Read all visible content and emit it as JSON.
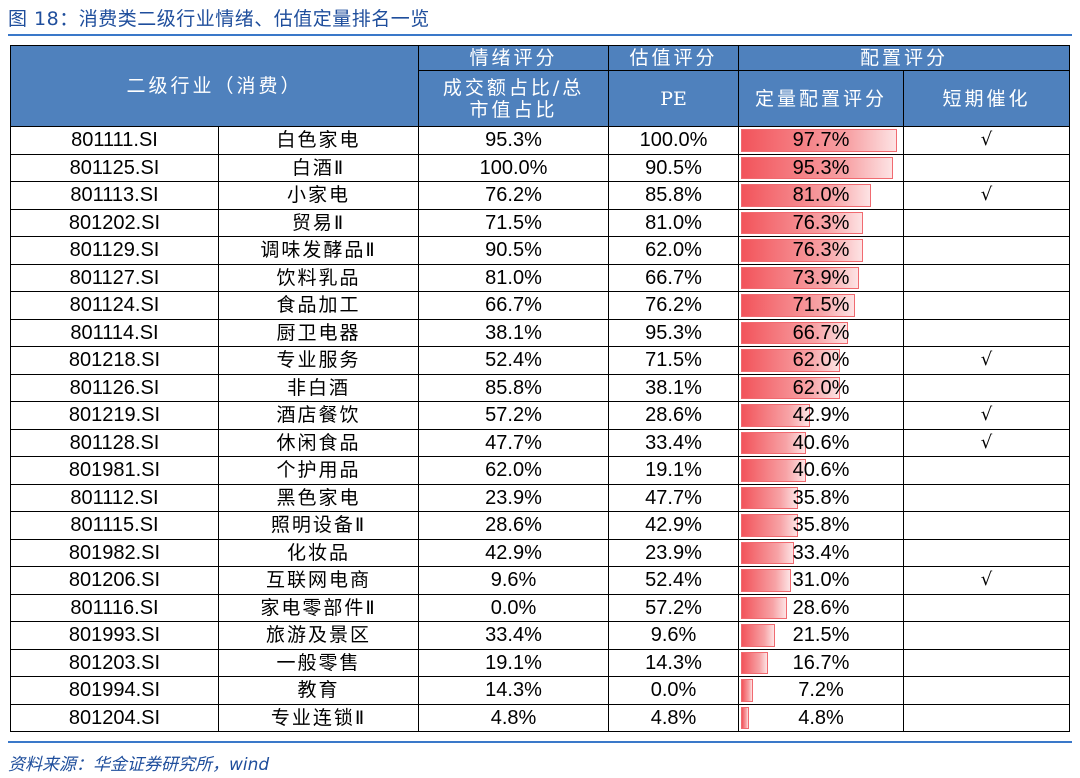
{
  "title": "图 18：消费类二级行业情绪、估值定量排名一览",
  "source": "资料来源：华金证券研究所，wind",
  "header": {
    "industry": "二级行业（消费）",
    "sentiment": "情绪评分",
    "sentiment_sub": "成交额占比/总市值占比",
    "valuation": "估值评分",
    "valuation_sub": "PE",
    "allocation": "配置评分",
    "allocation_quant": "定量配置评分",
    "allocation_catalyst": "短期催化"
  },
  "accent_color": "#4f81bd",
  "bar_color": "#f2545b",
  "check_mark": "√",
  "rows": [
    {
      "code": "801111.SI",
      "name": "白色家电",
      "sentiment": "95.3%",
      "pe": "100.0%",
      "score": "97.7%",
      "score_value": 97.7,
      "catalyst": "√"
    },
    {
      "code": "801125.SI",
      "name": "白酒Ⅱ",
      "sentiment": "100.0%",
      "pe": "90.5%",
      "score": "95.3%",
      "score_value": 95.3,
      "catalyst": ""
    },
    {
      "code": "801113.SI",
      "name": "小家电",
      "sentiment": "76.2%",
      "pe": "85.8%",
      "score": "81.0%",
      "score_value": 81.0,
      "catalyst": "√"
    },
    {
      "code": "801202.SI",
      "name": "贸易Ⅱ",
      "sentiment": "71.5%",
      "pe": "81.0%",
      "score": "76.3%",
      "score_value": 76.3,
      "catalyst": ""
    },
    {
      "code": "801129.SI",
      "name": "调味发酵品Ⅱ",
      "sentiment": "90.5%",
      "pe": "62.0%",
      "score": "76.3%",
      "score_value": 76.3,
      "catalyst": ""
    },
    {
      "code": "801127.SI",
      "name": "饮料乳品",
      "sentiment": "81.0%",
      "pe": "66.7%",
      "score": "73.9%",
      "score_value": 73.9,
      "catalyst": ""
    },
    {
      "code": "801124.SI",
      "name": "食品加工",
      "sentiment": "66.7%",
      "pe": "76.2%",
      "score": "71.5%",
      "score_value": 71.5,
      "catalyst": ""
    },
    {
      "code": "801114.SI",
      "name": "厨卫电器",
      "sentiment": "38.1%",
      "pe": "95.3%",
      "score": "66.7%",
      "score_value": 66.7,
      "catalyst": ""
    },
    {
      "code": "801218.SI",
      "name": "专业服务",
      "sentiment": "52.4%",
      "pe": "71.5%",
      "score": "62.0%",
      "score_value": 62.0,
      "catalyst": "√"
    },
    {
      "code": "801126.SI",
      "name": "非白酒",
      "sentiment": "85.8%",
      "pe": "38.1%",
      "score": "62.0%",
      "score_value": 62.0,
      "catalyst": ""
    },
    {
      "code": "801219.SI",
      "name": "酒店餐饮",
      "sentiment": "57.2%",
      "pe": "28.6%",
      "score": "42.9%",
      "score_value": 42.9,
      "catalyst": "√"
    },
    {
      "code": "801128.SI",
      "name": "休闲食品",
      "sentiment": "47.7%",
      "pe": "33.4%",
      "score": "40.6%",
      "score_value": 40.6,
      "catalyst": "√"
    },
    {
      "code": "801981.SI",
      "name": "个护用品",
      "sentiment": "62.0%",
      "pe": "19.1%",
      "score": "40.6%",
      "score_value": 40.6,
      "catalyst": ""
    },
    {
      "code": "801112.SI",
      "name": "黑色家电",
      "sentiment": "23.9%",
      "pe": "47.7%",
      "score": "35.8%",
      "score_value": 35.8,
      "catalyst": ""
    },
    {
      "code": "801115.SI",
      "name": "照明设备Ⅱ",
      "sentiment": "28.6%",
      "pe": "42.9%",
      "score": "35.8%",
      "score_value": 35.8,
      "catalyst": ""
    },
    {
      "code": "801982.SI",
      "name": "化妆品",
      "sentiment": "42.9%",
      "pe": "23.9%",
      "score": "33.4%",
      "score_value": 33.4,
      "catalyst": ""
    },
    {
      "code": "801206.SI",
      "name": "互联网电商",
      "sentiment": "9.6%",
      "pe": "52.4%",
      "score": "31.0%",
      "score_value": 31.0,
      "catalyst": "√"
    },
    {
      "code": "801116.SI",
      "name": "家电零部件Ⅱ",
      "sentiment": "0.0%",
      "pe": "57.2%",
      "score": "28.6%",
      "score_value": 28.6,
      "catalyst": ""
    },
    {
      "code": "801993.SI",
      "name": "旅游及景区",
      "sentiment": "33.4%",
      "pe": "9.6%",
      "score": "21.5%",
      "score_value": 21.5,
      "catalyst": ""
    },
    {
      "code": "801203.SI",
      "name": "一般零售",
      "sentiment": "19.1%",
      "pe": "14.3%",
      "score": "16.7%",
      "score_value": 16.7,
      "catalyst": ""
    },
    {
      "code": "801994.SI",
      "name": "教育",
      "sentiment": "14.3%",
      "pe": "0.0%",
      "score": "7.2%",
      "score_value": 7.2,
      "catalyst": ""
    },
    {
      "code": "801204.SI",
      "name": "专业连锁Ⅱ",
      "sentiment": "4.8%",
      "pe": "4.8%",
      "score": "4.8%",
      "score_value": 4.8,
      "catalyst": ""
    }
  ]
}
